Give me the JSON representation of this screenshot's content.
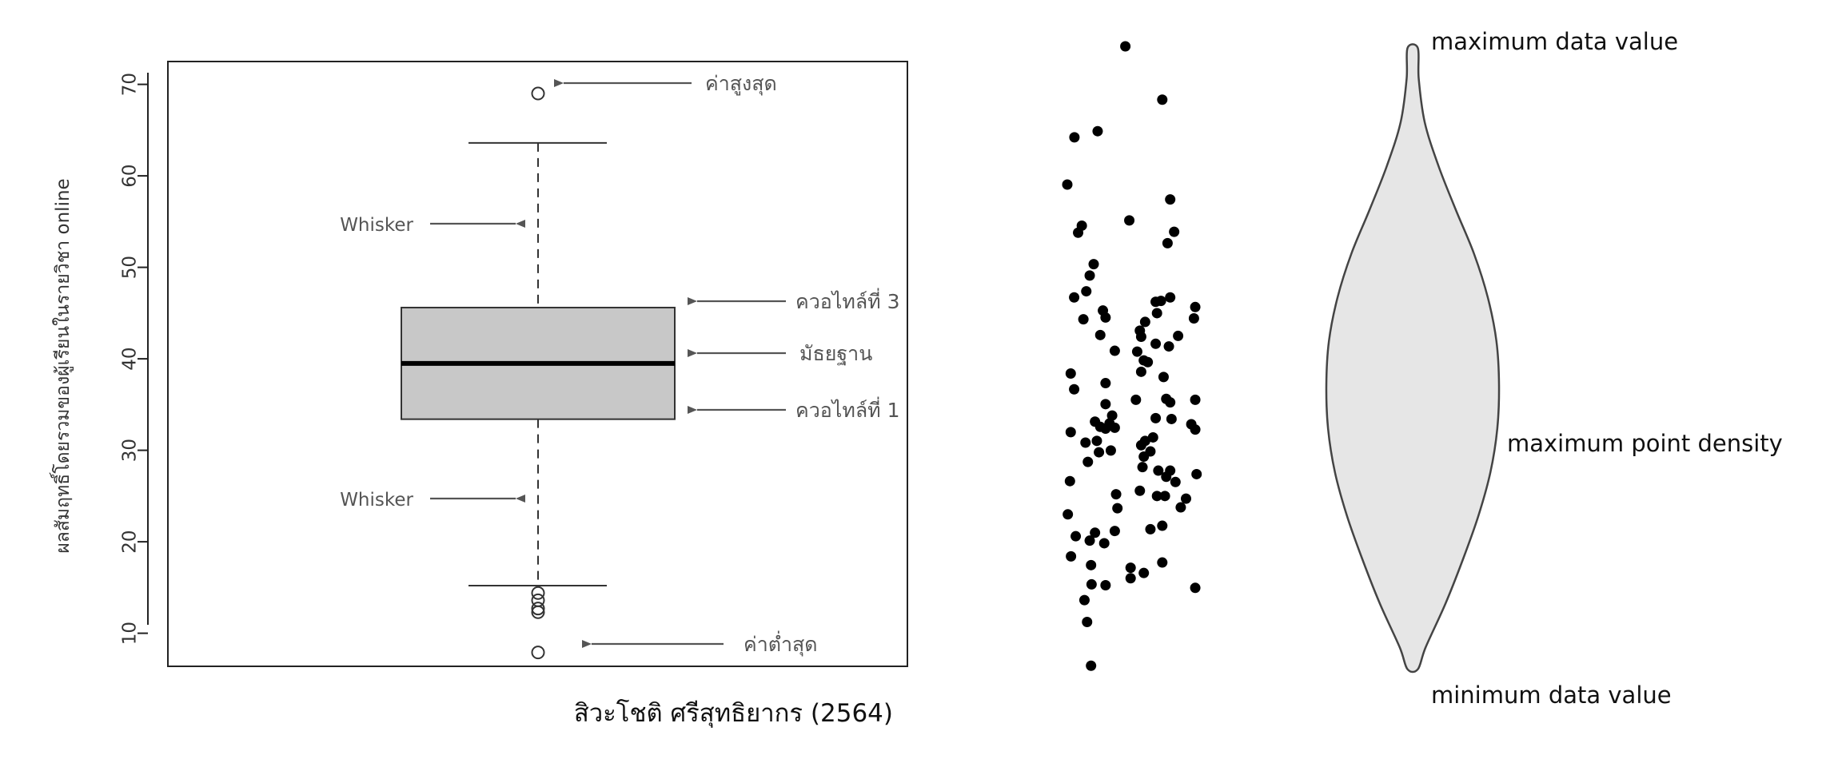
{
  "boxplot": {
    "ylabel": "ผลสัมฤทธิ์โดยรวมของผู้เรียนในรายวิชา online",
    "credit": "สิวะโชติ ศรีสุทธิยากร (2564)",
    "annotations": {
      "max": "ค่าสูงสุด",
      "min": "ค่าต่ำสุด",
      "q3": "ควอไทล์ที่ 3",
      "median": "มัธยฐาน",
      "q1": "ควอไทล์ที่ 1",
      "whisker_upper": "Whisker",
      "whisker_lower": "Whisker"
    }
  },
  "violin": {
    "max_label": "maximum data value",
    "density_label": "maximum point density",
    "min_label": "minimum data value",
    "fill": "#e6e6e6"
  },
  "chart_data": [
    {
      "type": "box",
      "ylim": [
        5,
        71.5
      ],
      "yticks": [
        "10",
        "20",
        "30",
        "40",
        "50",
        "60",
        "70"
      ],
      "ytick_values": [
        10,
        20,
        30,
        40,
        50,
        60,
        70
      ],
      "ylabel": "ผลสัมฤทธิ์โดยรวมของผู้เรียนในรายวิชา online",
      "whisker_low": 15.2,
      "q1": 33.4,
      "median": 39.5,
      "q3": 45.6,
      "whisker_high": 63.6,
      "outliers": [
        69.0,
        14.4,
        13.6,
        12.7,
        12.3,
        7.9
      ],
      "box_color": "#c8c8c8",
      "grid": false
    },
    {
      "type": "scatter",
      "ylim": [
        0,
        75
      ],
      "points": [
        [
          0.0,
          57.9
        ],
        [
          0.27,
          63.3
        ],
        [
          1.15,
          64.0
        ],
        [
          2.2,
          73.7
        ],
        [
          3.6,
          67.6
        ],
        [
          0.55,
          53.2
        ],
        [
          0.41,
          52.4
        ],
        [
          2.35,
          53.8
        ],
        [
          3.9,
          56.2
        ],
        [
          4.05,
          52.5
        ],
        [
          3.8,
          51.2
        ],
        [
          1.0,
          48.8
        ],
        [
          0.85,
          47.5
        ],
        [
          0.72,
          45.7
        ],
        [
          0.26,
          45.0
        ],
        [
          3.55,
          44.6
        ],
        [
          3.35,
          44.5
        ],
        [
          3.9,
          45.0
        ],
        [
          3.4,
          43.2
        ],
        [
          4.85,
          43.9
        ],
        [
          4.8,
          42.6
        ],
        [
          1.35,
          43.5
        ],
        [
          1.45,
          42.7
        ],
        [
          0.61,
          42.5
        ],
        [
          2.95,
          42.2
        ],
        [
          2.75,
          41.2
        ],
        [
          2.8,
          40.5
        ],
        [
          4.2,
          40.6
        ],
        [
          1.25,
          40.7
        ],
        [
          3.35,
          39.7
        ],
        [
          3.85,
          39.4
        ],
        [
          1.8,
          38.9
        ],
        [
          2.65,
          38.8
        ],
        [
          0.13,
          36.3
        ],
        [
          2.9,
          37.8
        ],
        [
          3.05,
          37.6
        ],
        [
          2.8,
          36.5
        ],
        [
          3.65,
          35.9
        ],
        [
          1.45,
          35.2
        ],
        [
          0.26,
          34.5
        ],
        [
          2.6,
          33.3
        ],
        [
          3.75,
          33.4
        ],
        [
          3.9,
          33.0
        ],
        [
          4.85,
          33.3
        ],
        [
          1.45,
          32.8
        ],
        [
          1.7,
          31.5
        ],
        [
          3.35,
          31.2
        ],
        [
          3.95,
          31.1
        ],
        [
          1.05,
          30.8
        ],
        [
          1.6,
          30.6
        ],
        [
          1.25,
          30.2
        ],
        [
          1.45,
          30.0
        ],
        [
          4.7,
          30.5
        ],
        [
          4.85,
          29.9
        ],
        [
          1.8,
          30.1
        ],
        [
          0.13,
          29.6
        ],
        [
          3.25,
          29.0
        ],
        [
          2.95,
          28.6
        ],
        [
          0.69,
          28.4
        ],
        [
          1.12,
          28.6
        ],
        [
          2.8,
          28.1
        ],
        [
          3.15,
          27.4
        ],
        [
          1.65,
          27.5
        ],
        [
          1.2,
          27.3
        ],
        [
          2.9,
          26.8
        ],
        [
          0.78,
          26.2
        ],
        [
          2.85,
          25.6
        ],
        [
          3.9,
          25.2
        ],
        [
          3.45,
          25.2
        ],
        [
          4.9,
          24.8
        ],
        [
          3.75,
          24.5
        ],
        [
          4.1,
          23.9
        ],
        [
          0.1,
          24.0
        ],
        [
          2.75,
          22.9
        ],
        [
          1.85,
          22.5
        ],
        [
          3.4,
          22.3
        ],
        [
          3.7,
          22.3
        ],
        [
          4.5,
          22.0
        ],
        [
          4.3,
          21.0
        ],
        [
          1.9,
          20.9
        ],
        [
          0.02,
          20.2
        ],
        [
          3.6,
          18.9
        ],
        [
          3.15,
          18.5
        ],
        [
          1.8,
          18.3
        ],
        [
          1.05,
          18.1
        ],
        [
          0.32,
          17.7
        ],
        [
          1.4,
          16.9
        ],
        [
          0.85,
          17.2
        ],
        [
          0.14,
          15.4
        ],
        [
          0.9,
          14.4
        ],
        [
          3.6,
          14.7
        ],
        [
          2.4,
          14.1
        ],
        [
          2.9,
          13.5
        ],
        [
          2.4,
          12.9
        ],
        [
          1.45,
          12.1
        ],
        [
          0.92,
          12.2
        ],
        [
          4.85,
          11.8
        ],
        [
          0.65,
          10.4
        ],
        [
          0.75,
          7.9
        ],
        [
          0.9,
          2.9
        ]
      ]
    },
    {
      "type": "violin",
      "ylim": [
        0,
        75
      ],
      "min": 2.5,
      "max": 73.5,
      "mode": 35.5,
      "profile": [
        [
          2.5,
          0.06
        ],
        [
          5,
          0.15
        ],
        [
          10,
          0.38
        ],
        [
          15,
          0.58
        ],
        [
          20,
          0.76
        ],
        [
          25,
          0.9
        ],
        [
          30,
          0.98
        ],
        [
          35,
          1.0
        ],
        [
          40,
          0.97
        ],
        [
          45,
          0.87
        ],
        [
          50,
          0.71
        ],
        [
          55,
          0.5
        ],
        [
          60,
          0.3
        ],
        [
          65,
          0.14
        ],
        [
          70,
          0.07
        ],
        [
          73.5,
          0.06
        ]
      ]
    }
  ]
}
